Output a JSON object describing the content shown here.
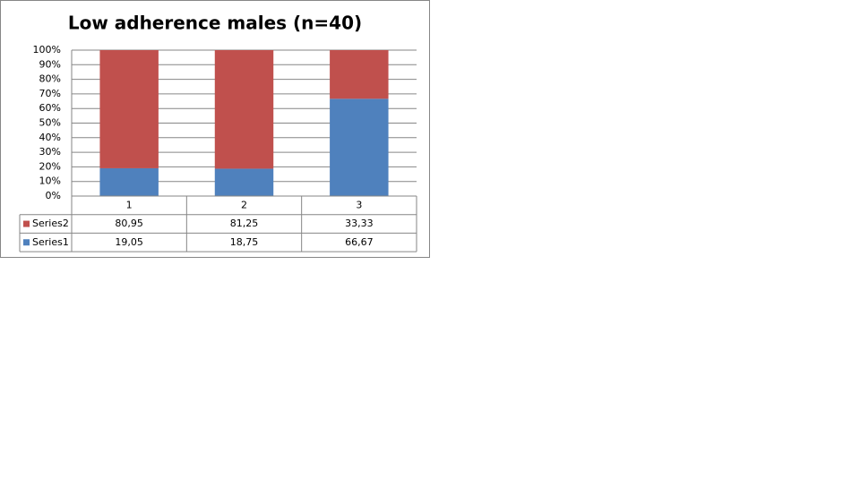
{
  "chart_data": {
    "type": "stacked_bar",
    "title": "Low adherence males (n=40)",
    "categories": [
      "1",
      "2",
      "3"
    ],
    "series": [
      {
        "name": "Series1",
        "color": "#4f81bd",
        "values": [
          19.05,
          18.75,
          66.67
        ],
        "value_labels": [
          "19,05",
          "18,75",
          "66,67"
        ]
      },
      {
        "name": "Series2",
        "color": "#c0504d",
        "values": [
          80.95,
          81.25,
          33.33
        ],
        "value_labels": [
          "80,95",
          "81,25",
          "33,33"
        ]
      }
    ],
    "ylim": [
      0,
      100
    ],
    "yticks": [
      {
        "value": 0,
        "label": "0%"
      },
      {
        "value": 10,
        "label": "10%"
      },
      {
        "value": 20,
        "label": "20%"
      },
      {
        "value": 30,
        "label": "30%"
      },
      {
        "value": 40,
        "label": "40%"
      },
      {
        "value": 50,
        "label": "50%"
      },
      {
        "value": 60,
        "label": "60%"
      },
      {
        "value": 70,
        "label": "70%"
      },
      {
        "value": 80,
        "label": "80%"
      },
      {
        "value": 90,
        "label": "90%"
      },
      {
        "value": 100,
        "label": "100%"
      }
    ],
    "grid": true,
    "legend": "data-table"
  }
}
